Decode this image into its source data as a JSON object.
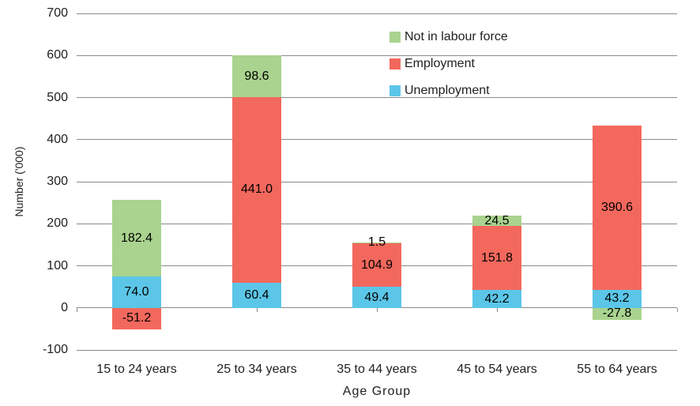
{
  "chart_data": {
    "type": "bar",
    "stacked": true,
    "title": "",
    "xlabel": "Age Group",
    "ylabel": "Number ('000)",
    "categories": [
      "15 to 24 years",
      "25 to 34 years",
      "35 to 44 years",
      "45 to 54 years",
      "55 to 64 years"
    ],
    "series": [
      {
        "name": "Unemployment",
        "color": "#5BC6E8",
        "values": [
          74.0,
          60.4,
          49.4,
          42.2,
          43.2
        ]
      },
      {
        "name": "Employment",
        "color": "#F3685D",
        "values": [
          -51.2,
          441.0,
          104.9,
          151.8,
          390.6
        ]
      },
      {
        "name": "Not in labour force",
        "color": "#A9D38E",
        "values": [
          182.4,
          98.6,
          1.5,
          24.5,
          -27.8
        ]
      }
    ],
    "legend": {
      "position": "top-center",
      "order": [
        "Not in labour force",
        "Employment",
        "Unemployment"
      ]
    },
    "axis": {
      "ymin": -100,
      "ymax": 700,
      "ticks": [
        700,
        600,
        500,
        400,
        300,
        200,
        100,
        0,
        -100
      ],
      "grid": true
    },
    "label_decimals": 1,
    "colors": {
      "gridline": "#8a8a8a",
      "text": "#1f1f1f",
      "label": "#000000"
    }
  }
}
